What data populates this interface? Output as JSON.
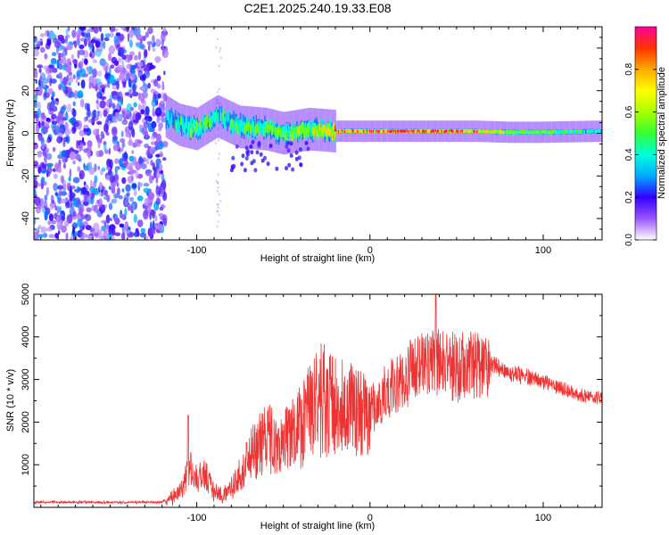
{
  "title": "C2E1.2025.240.19.33.E08",
  "chart_data": [
    {
      "type": "heatmap",
      "name": "spectrogram",
      "xlabel": "Height of straight line (km)",
      "ylabel": "Frequency (Hz)",
      "xlim": [
        -194,
        134
      ],
      "ylim": [
        -50,
        50
      ],
      "xticks": [
        -100,
        0,
        100
      ],
      "yticks": [
        -40,
        -20,
        0,
        20,
        40
      ],
      "xtick_labels": [
        "-100",
        "0",
        "100"
      ],
      "ytick_labels": [
        "-40",
        "-20",
        "0",
        "20",
        "40"
      ],
      "noise_region_x": [
        -194,
        -118
      ],
      "signal_track": [
        {
          "x": -118,
          "f": 8,
          "amp": 0.3
        },
        {
          "x": -110,
          "f": 4,
          "amp": 0.45
        },
        {
          "x": -100,
          "f": 2,
          "amp": 0.55
        },
        {
          "x": -88,
          "f": 8,
          "amp": 0.4
        },
        {
          "x": -75,
          "f": 3,
          "amp": 0.5
        },
        {
          "x": -60,
          "f": 2,
          "amp": 0.55
        },
        {
          "x": -50,
          "f": 0,
          "amp": 0.6
        },
        {
          "x": -35,
          "f": 2,
          "amp": 0.65
        },
        {
          "x": -20,
          "f": 1,
          "amp": 0.8
        },
        {
          "x": 0,
          "f": 1,
          "amp": 0.85
        },
        {
          "x": 20,
          "f": 1,
          "amp": 0.95
        },
        {
          "x": 40,
          "f": 1,
          "amp": 0.95
        },
        {
          "x": 60,
          "f": 1,
          "amp": 0.8
        },
        {
          "x": 80,
          "f": 0.5,
          "amp": 0.6
        },
        {
          "x": 100,
          "f": 0.5,
          "amp": 0.55
        },
        {
          "x": 134,
          "f": 1,
          "amp": 0.4
        }
      ],
      "colorbar": {
        "label": "Normalized spectral amplitude",
        "range": [
          0,
          1
        ],
        "ticks": [
          0.0,
          0.2,
          0.4,
          0.6,
          0.8
        ],
        "tick_labels": [
          "0.0",
          "0.2",
          "0.4",
          "0.6",
          "0.8"
        ]
      }
    },
    {
      "type": "line",
      "name": "snr",
      "xlabel": "Height of straight line (km)",
      "ylabel": "SNR (10 * v/v)",
      "xlim": [
        -194,
        134
      ],
      "ylim": [
        0,
        5000
      ],
      "xticks": [
        -100,
        0,
        100
      ],
      "yticks": [
        1000,
        2000,
        3000,
        4000,
        5000
      ],
      "xtick_labels": [
        "-100",
        "0",
        "100"
      ],
      "ytick_labels": [
        "1000",
        "2000",
        "3000",
        "4000",
        "5000"
      ],
      "line_color": "#ee3333",
      "series": [
        {
          "name": "SNR envelope",
          "x": [
            -194,
            -120,
            -110,
            -104,
            -100,
            -95,
            -90,
            -85,
            -80,
            -70,
            -60,
            -55,
            -50,
            -40,
            -30,
            -20,
            -10,
            0,
            10,
            20,
            30,
            40,
            50,
            60,
            70,
            80,
            90,
            100,
            110,
            120,
            134
          ],
          "values": [
            120,
            120,
            350,
            1000,
            700,
            800,
            400,
            250,
            500,
            1200,
            1800,
            1500,
            1600,
            2000,
            2600,
            2700,
            2500,
            2400,
            2900,
            3200,
            3600,
            3600,
            3500,
            3500,
            3450,
            3200,
            3150,
            3000,
            2850,
            2700,
            2600
          ]
        }
      ]
    }
  ]
}
